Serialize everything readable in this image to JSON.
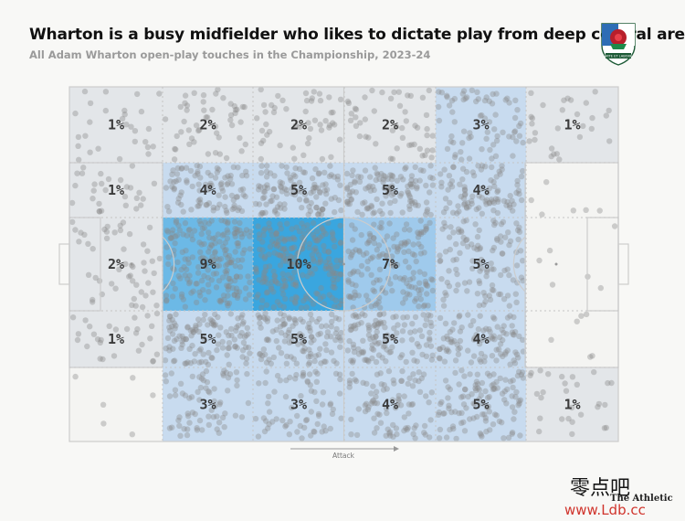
{
  "header": {
    "title": "Wharton is a busy midfielder who likes to dictate play from deep central areas",
    "subtitle": "All Adam Wharton open-play touches in the Championship, 2023-24"
  },
  "crest": {
    "name": "blackburn-rovers-crest",
    "motto": "ARTE ET LABORE"
  },
  "footer": {
    "attack_label": "Attack",
    "source": "The Athletic",
    "watermark_chars": "零点吧",
    "watermark_url": "www.Ldb.cc"
  },
  "colors": {
    "grey_zone": "#e3e6e9",
    "blue_light": "#c8dbef",
    "blue_mid": "#9fcaec",
    "blue_strong": "#6cb9e6",
    "blue_peak": "#3aa6df",
    "dots": "#8a8a8a",
    "lines": "#cccccc",
    "text": "#333333"
  },
  "chart_data": {
    "type": "heatmap",
    "title": "Wharton is a busy midfielder who likes to dictate play from deep central areas",
    "subtitle": "All Adam Wharton open-play touches in the Championship, 2023-24",
    "unit": "% of touches",
    "attack_direction": "left-to-right",
    "columns": 6,
    "rows": 5,
    "cells": [
      [
        "1%",
        "2%",
        "2%",
        "2%",
        "3%",
        "1%"
      ],
      [
        "1%",
        "4%",
        "5%",
        "5%",
        "4%",
        ""
      ],
      [
        "2%",
        "9%",
        "10%",
        "7%",
        "5%",
        ""
      ],
      [
        "1%",
        "5%",
        "5%",
        "5%",
        "4%",
        ""
      ],
      [
        "",
        "3%",
        "3%",
        "4%",
        "5%",
        "1%"
      ]
    ],
    "values": [
      [
        1,
        2,
        2,
        2,
        3,
        1
      ],
      [
        1,
        4,
        5,
        5,
        4,
        0
      ],
      [
        2,
        9,
        10,
        7,
        5,
        0
      ],
      [
        1,
        5,
        5,
        5,
        4,
        0
      ],
      [
        0,
        3,
        3,
        4,
        5,
        1
      ]
    ],
    "annotations": [
      "Attack"
    ]
  }
}
